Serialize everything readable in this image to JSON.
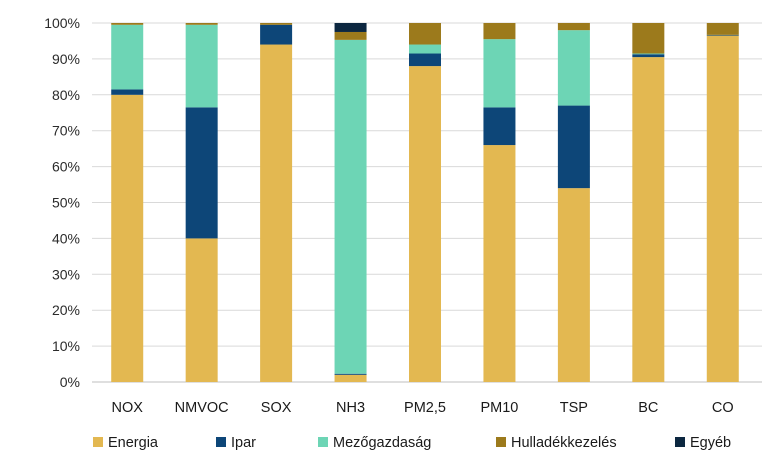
{
  "chart_data": {
    "type": "bar",
    "stacked": true,
    "percent_stacked": true,
    "categories": [
      "NOX",
      "NMVOC",
      "SOX",
      "NH3",
      "PM2,5",
      "PM10",
      "TSP",
      "BC",
      "CO"
    ],
    "series": [
      {
        "name": "Energia",
        "color": "#E3B851",
        "values": [
          80,
          40,
          94,
          2,
          88,
          66,
          54,
          90.5,
          96.5
        ]
      },
      {
        "name": "Ipar",
        "color": "#0D4678",
        "values": [
          1.5,
          36.5,
          5.5,
          0.3,
          3.5,
          10.5,
          23,
          0.8,
          0.2
        ]
      },
      {
        "name": "Mezőgazdaság",
        "color": "#6DD5B5",
        "values": [
          18,
          23,
          0,
          93,
          2.5,
          19,
          21,
          0.2,
          0
        ]
      },
      {
        "name": "Hulladékkezelés",
        "color": "#9C7A1C",
        "values": [
          0.5,
          0.5,
          0.5,
          2.2,
          6,
          4.5,
          2,
          8.5,
          3.3
        ]
      },
      {
        "name": "Egyéb",
        "color": "#0C2740",
        "values": [
          0,
          0,
          0,
          2.5,
          0,
          0,
          0,
          0,
          0
        ]
      }
    ],
    "y_ticks": [
      "0%",
      "10%",
      "20%",
      "30%",
      "40%",
      "50%",
      "60%",
      "70%",
      "80%",
      "90%",
      "100%"
    ],
    "ylim": [
      0,
      100
    ],
    "grid": true,
    "legend_position": "bottom"
  }
}
